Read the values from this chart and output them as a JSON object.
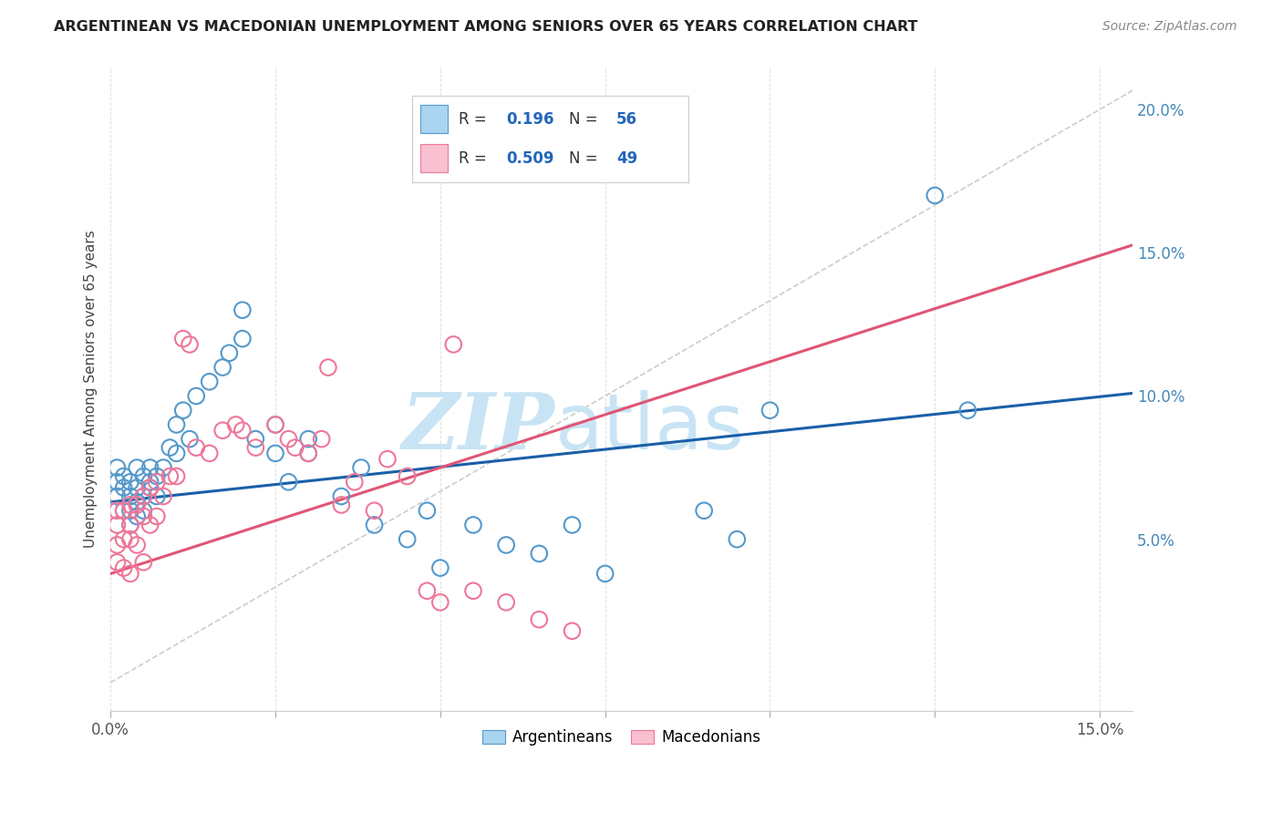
{
  "title": "ARGENTINEAN VS MACEDONIAN UNEMPLOYMENT AMONG SENIORS OVER 65 YEARS CORRELATION CHART",
  "source": "Source: ZipAtlas.com",
  "ylabel": "Unemployment Among Seniors over 65 years",
  "xlim": [
    0.0,
    0.155
  ],
  "ylim": [
    -0.01,
    0.215
  ],
  "xtick_vals": [
    0.0,
    0.025,
    0.05,
    0.075,
    0.1,
    0.125,
    0.15
  ],
  "xtick_labels": [
    "0.0%",
    "",
    "",
    "",
    "",
    "",
    "15.0%"
  ],
  "ytick_right_vals": [
    0.05,
    0.1,
    0.15,
    0.2
  ],
  "ytick_right_labels": [
    "5.0%",
    "10.0%",
    "15.0%",
    "20.0%"
  ],
  "legend_blue_r": "0.196",
  "legend_blue_n": "56",
  "legend_pink_r": "0.509",
  "legend_pink_n": "49",
  "blue_dot_face": "#aad4f0",
  "blue_dot_edge": "#5599cc",
  "pink_dot_face": "#f8c0d0",
  "pink_dot_edge": "#ee7799",
  "blue_line_color": "#1a5fa8",
  "pink_line_color": "#e05575",
  "diag_color": "#cccccc",
  "watermark_zip_color": "#c8e4f4",
  "watermark_atlas_color": "#c8e4f4",
  "grid_color": "#dddddd",
  "title_color": "#222222",
  "source_color": "#888888",
  "ylabel_color": "#444444",
  "right_tick_color": "#4488bb",
  "background": "#ffffff",
  "blue_line_intercept": 0.063,
  "blue_line_slope": 0.245,
  "pink_line_intercept": 0.038,
  "pink_line_slope": 0.74,
  "arg_x": [
    0.001,
    0.001,
    0.001,
    0.002,
    0.002,
    0.002,
    0.003,
    0.003,
    0.003,
    0.003,
    0.004,
    0.004,
    0.004,
    0.004,
    0.005,
    0.005,
    0.005,
    0.006,
    0.006,
    0.006,
    0.007,
    0.007,
    0.008,
    0.009,
    0.01,
    0.01,
    0.011,
    0.012,
    0.013,
    0.015,
    0.017,
    0.018,
    0.02,
    0.02,
    0.022,
    0.025,
    0.025,
    0.027,
    0.03,
    0.03,
    0.035,
    0.038,
    0.04,
    0.045,
    0.048,
    0.05,
    0.055,
    0.06,
    0.065,
    0.07,
    0.075,
    0.09,
    0.095,
    0.1,
    0.125,
    0.13
  ],
  "arg_y": [
    0.065,
    0.07,
    0.075,
    0.06,
    0.068,
    0.072,
    0.055,
    0.06,
    0.065,
    0.07,
    0.058,
    0.063,
    0.068,
    0.075,
    0.06,
    0.065,
    0.072,
    0.068,
    0.07,
    0.075,
    0.065,
    0.072,
    0.075,
    0.082,
    0.08,
    0.09,
    0.095,
    0.085,
    0.1,
    0.105,
    0.11,
    0.115,
    0.13,
    0.12,
    0.085,
    0.08,
    0.09,
    0.07,
    0.08,
    0.085,
    0.065,
    0.075,
    0.055,
    0.05,
    0.06,
    0.04,
    0.055,
    0.048,
    0.045,
    0.055,
    0.038,
    0.06,
    0.05,
    0.095,
    0.17,
    0.095
  ],
  "mac_x": [
    0.001,
    0.001,
    0.001,
    0.001,
    0.002,
    0.002,
    0.002,
    0.003,
    0.003,
    0.003,
    0.003,
    0.004,
    0.004,
    0.005,
    0.005,
    0.005,
    0.006,
    0.006,
    0.007,
    0.007,
    0.008,
    0.009,
    0.01,
    0.011,
    0.012,
    0.013,
    0.015,
    0.017,
    0.019,
    0.02,
    0.022,
    0.025,
    0.027,
    0.028,
    0.03,
    0.032,
    0.033,
    0.035,
    0.037,
    0.04,
    0.042,
    0.045,
    0.048,
    0.05,
    0.052,
    0.055,
    0.06,
    0.065,
    0.07
  ],
  "mac_y": [
    0.055,
    0.06,
    0.048,
    0.042,
    0.06,
    0.05,
    0.04,
    0.055,
    0.062,
    0.05,
    0.038,
    0.062,
    0.048,
    0.058,
    0.065,
    0.042,
    0.068,
    0.055,
    0.07,
    0.058,
    0.065,
    0.072,
    0.072,
    0.12,
    0.118,
    0.082,
    0.08,
    0.088,
    0.09,
    0.088,
    0.082,
    0.09,
    0.085,
    0.082,
    0.08,
    0.085,
    0.11,
    0.062,
    0.07,
    0.06,
    0.078,
    0.072,
    0.032,
    0.028,
    0.118,
    0.032,
    0.028,
    0.022,
    0.018
  ]
}
